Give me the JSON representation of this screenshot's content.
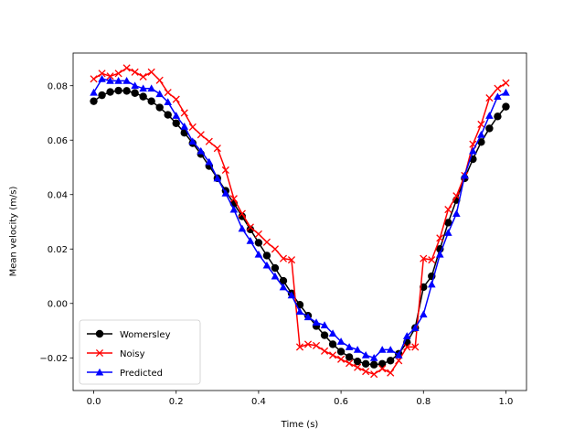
{
  "chart_data": {
    "type": "line",
    "title": "",
    "xlabel": "Time (s)",
    "ylabel": "Mean velocity (m/s)",
    "xlim": [
      -0.05,
      1.05
    ],
    "ylim": [
      -0.032,
      0.092
    ],
    "xticks": [
      0.0,
      0.2,
      0.4,
      0.6,
      0.8,
      1.0
    ],
    "xtick_labels": [
      "0.0",
      "0.2",
      "0.4",
      "0.6",
      "0.8",
      "1.0"
    ],
    "yticks": [
      -0.02,
      0.0,
      0.02,
      0.04,
      0.06,
      0.08
    ],
    "ytick_labels": [
      "−0.02",
      "0.00",
      "0.02",
      "0.04",
      "0.06",
      "0.08"
    ],
    "grid": false,
    "legend_position": "lower-left",
    "x": [
      0.0,
      0.02,
      0.04,
      0.06,
      0.08,
      0.1,
      0.12,
      0.14,
      0.16,
      0.18,
      0.2,
      0.22,
      0.24,
      0.26,
      0.28,
      0.3,
      0.32,
      0.34,
      0.36,
      0.38,
      0.4,
      0.42,
      0.44,
      0.46,
      0.48,
      0.5,
      0.52,
      0.54,
      0.56,
      0.58,
      0.6,
      0.62,
      0.64,
      0.66,
      0.68,
      0.7,
      0.72,
      0.74,
      0.76,
      0.78,
      0.8,
      0.82,
      0.84,
      0.86,
      0.88,
      0.9,
      0.92,
      0.94,
      0.96,
      0.98,
      1.0
    ],
    "series": [
      {
        "name": "Womersley",
        "color": "#000000",
        "marker": "circle",
        "values": [
          0.0743,
          0.0765,
          0.0777,
          0.0782,
          0.0781,
          0.0773,
          0.076,
          0.0743,
          0.072,
          0.0693,
          0.0662,
          0.0627,
          0.0589,
          0.0549,
          0.0505,
          0.046,
          0.0414,
          0.0367,
          0.032,
          0.0272,
          0.0223,
          0.0176,
          0.013,
          0.0083,
          0.0037,
          -0.0005,
          -0.0045,
          -0.0083,
          -0.0117,
          -0.015,
          -0.0177,
          -0.0197,
          -0.0213,
          -0.0222,
          -0.0225,
          -0.0222,
          -0.021,
          -0.0185,
          -0.0143,
          -0.009,
          0.006,
          0.01,
          0.02,
          0.0297,
          0.038,
          0.046,
          0.053,
          0.0593,
          0.0643,
          0.0687,
          0.0723
        ]
      },
      {
        "name": "Noisy",
        "color": "#ff0000",
        "marker": "x",
        "values": [
          0.0825,
          0.0845,
          0.0835,
          0.0845,
          0.0865,
          0.085,
          0.0833,
          0.085,
          0.082,
          0.0775,
          0.075,
          0.07,
          0.0648,
          0.062,
          0.0595,
          0.057,
          0.049,
          0.0385,
          0.033,
          0.028,
          0.0255,
          0.0225,
          0.02,
          0.0165,
          0.016,
          -0.016,
          -0.015,
          -0.0155,
          -0.0175,
          -0.019,
          -0.0205,
          -0.022,
          -0.0235,
          -0.025,
          -0.026,
          -0.024,
          -0.0255,
          -0.021,
          -0.016,
          -0.016,
          0.0165,
          0.016,
          0.024,
          0.0345,
          0.0395,
          0.047,
          0.0585,
          0.0658,
          0.0755,
          0.079,
          0.081
        ]
      },
      {
        "name": "Predicted",
        "color": "#0000ff",
        "marker": "triangle",
        "values": [
          0.0775,
          0.0825,
          0.0818,
          0.0818,
          0.0818,
          0.08,
          0.079,
          0.079,
          0.077,
          0.074,
          0.069,
          0.065,
          0.0595,
          0.056,
          0.052,
          0.046,
          0.0405,
          0.0345,
          0.0275,
          0.023,
          0.018,
          0.014,
          0.01,
          0.006,
          0.003,
          -0.003,
          -0.005,
          -0.007,
          -0.008,
          -0.011,
          -0.014,
          -0.016,
          -0.017,
          -0.019,
          -0.02,
          -0.017,
          -0.017,
          -0.019,
          -0.012,
          -0.009,
          -0.004,
          0.007,
          0.018,
          0.026,
          0.033,
          0.047,
          0.056,
          0.062,
          0.069,
          0.076,
          0.0775
        ]
      }
    ]
  }
}
